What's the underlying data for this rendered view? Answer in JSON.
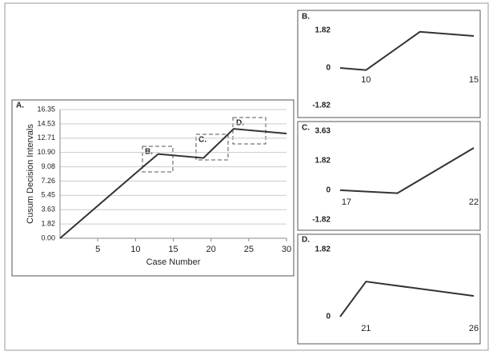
{
  "chart_data": [
    {
      "type": "line",
      "title": "A.",
      "x_label": "Case Number",
      "y_label": "Cusum Decision Intervals",
      "x": [
        0,
        11,
        13,
        19,
        23,
        30
      ],
      "values": [
        0,
        9.08,
        10.7,
        10.2,
        13.9,
        13.3
      ],
      "color": "#333333",
      "xlim": [
        0,
        30
      ],
      "xticks": [
        5,
        10,
        15,
        20,
        25,
        30
      ],
      "ylim": [
        0,
        16.35
      ],
      "yticks": [
        {
          "value": 0,
          "label": "0.00"
        },
        {
          "value": 1.82,
          "label": "1.82"
        },
        {
          "value": 3.63,
          "label": "3.63"
        },
        {
          "value": 5.45,
          "label": "5.45"
        },
        {
          "value": 7.26,
          "label": "7.26"
        },
        {
          "value": 9.08,
          "label": "9.08"
        },
        {
          "value": 10.9,
          "label": "10.90"
        },
        {
          "value": 12.71,
          "label": "12.71"
        },
        {
          "value": 14.53,
          "label": "14.53"
        },
        {
          "value": 16.35,
          "label": "16.35"
        }
      ],
      "grid": true,
      "annotations": [
        "B.",
        "C.",
        "D."
      ]
    },
    {
      "type": "line",
      "title": "B.",
      "x": [
        8.8,
        10,
        12.5,
        15
      ],
      "values": [
        0,
        -0.1,
        1.75,
        1.55
      ],
      "color": "#333333",
      "xlim": [
        8.8,
        15
      ],
      "xticks": [
        10,
        15
      ],
      "ylim": [
        -1.82,
        1.82
      ],
      "yticks": [
        -1.82,
        0,
        1.82
      ],
      "grid": false
    },
    {
      "type": "line",
      "title": "C.",
      "x": [
        16.75,
        19,
        22
      ],
      "values": [
        0,
        -0.18,
        2.6
      ],
      "color": "#333333",
      "xlim": [
        16.75,
        22
      ],
      "xticks": [
        17,
        22
      ],
      "ylim": [
        -1.82,
        3.63
      ],
      "yticks": [
        -1.82,
        0,
        1.82,
        3.63
      ],
      "grid": false
    },
    {
      "type": "line",
      "title": "D.",
      "x": [
        19.8,
        21,
        26
      ],
      "values": [
        0,
        0.95,
        0.56
      ],
      "color": "#333333",
      "xlim": [
        19.8,
        26
      ],
      "xticks": [
        21,
        26
      ],
      "ylim": [
        0,
        1.82
      ],
      "yticks": [
        0,
        1.82
      ],
      "grid": false
    }
  ]
}
